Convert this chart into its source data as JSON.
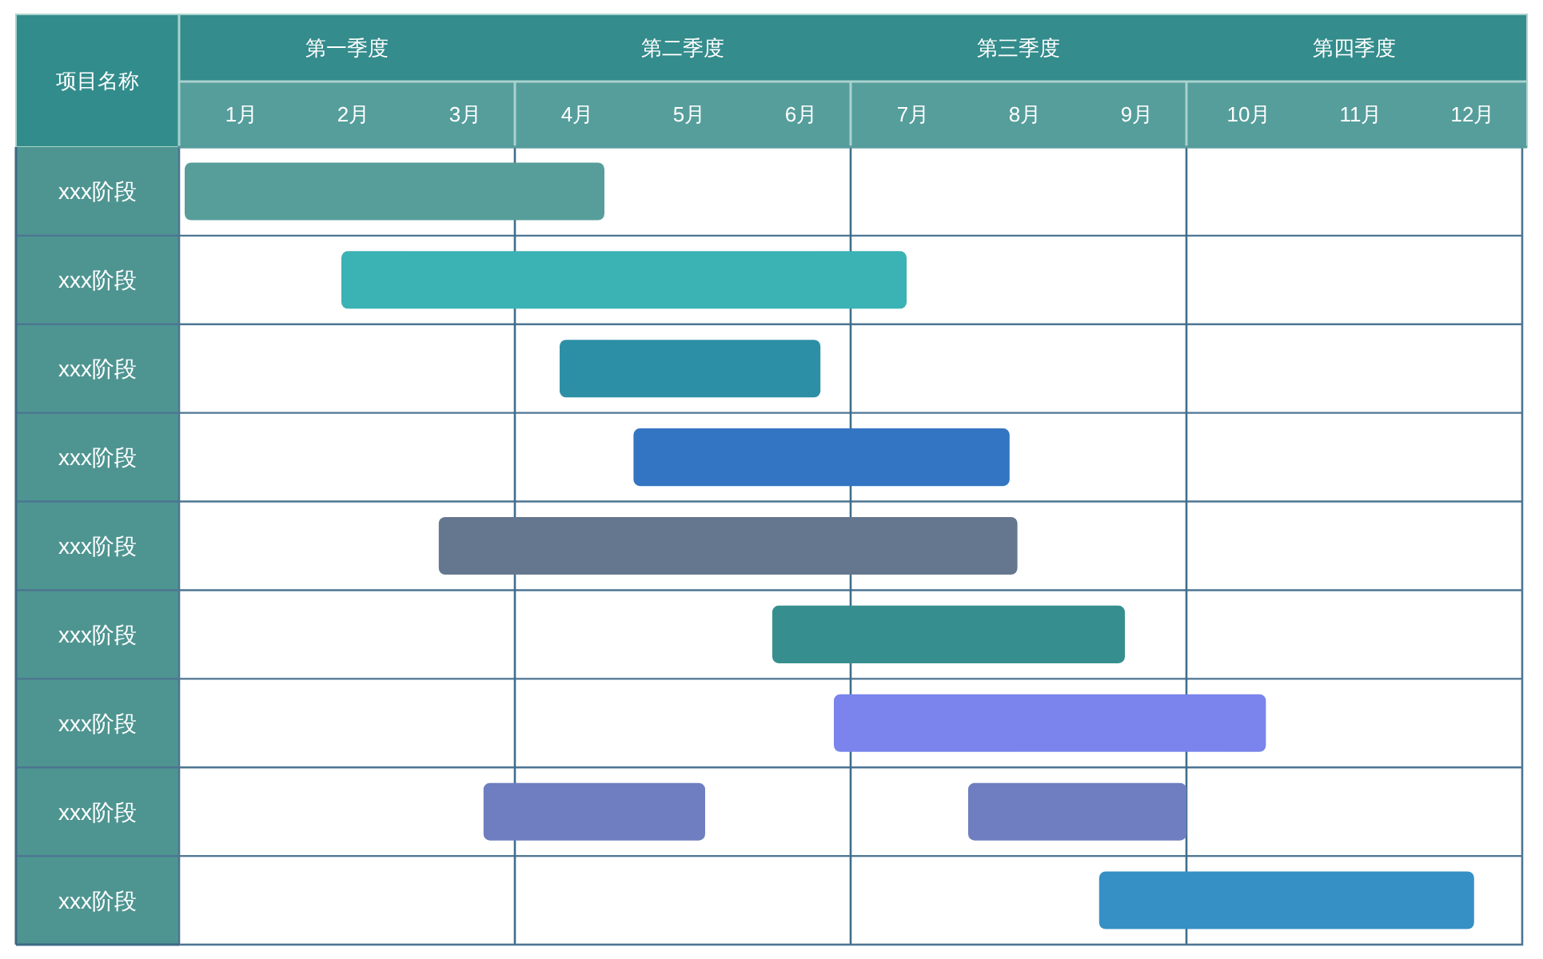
{
  "chart_data": {
    "type": "bar",
    "orientation": "horizontal",
    "ylabel": "项目名称",
    "categories": [
      "xxx阶段",
      "xxx阶段",
      "xxx阶段",
      "xxx阶段",
      "xxx阶段",
      "xxx阶段",
      "xxx阶段",
      "xxx阶段",
      "xxx阶段"
    ],
    "series": [
      {
        "values": [
          3.75,
          5.05,
          2.33,
          3.36,
          5.17,
          3.15,
          3.86,
          1.98,
          3.35
        ],
        "base": [
          0.05,
          1.45,
          3.4,
          4.06,
          2.32,
          5.3,
          5.85,
          2.72,
          8.22
        ],
        "colors": [
          "#579e9b",
          "#3bb2b3",
          "#2d8fa5",
          "#3375c2",
          "#64778f",
          "#368f8e",
          "#7a84ec",
          "#6e7ec0",
          "#3690c5"
        ]
      },
      {
        "values": [
          null,
          null,
          null,
          null,
          null,
          null,
          null,
          1.95,
          null
        ],
        "base": [
          null,
          null,
          null,
          null,
          null,
          null,
          null,
          7.05,
          null
        ],
        "color": "#6e7ec0"
      }
    ],
    "xlim": [
      0,
      12
    ],
    "xticks": [
      {
        "value": 0.5,
        "label": "1月"
      },
      {
        "value": 1.5,
        "label": "2月"
      },
      {
        "value": 2.5,
        "label": "3月"
      },
      {
        "value": 3.5,
        "label": "4月"
      },
      {
        "value": 4.5,
        "label": "5月"
      },
      {
        "value": 5.5,
        "label": "6月"
      },
      {
        "value": 6.5,
        "label": "7月"
      },
      {
        "value": 7.5,
        "label": "8月"
      },
      {
        "value": 8.5,
        "label": "9月"
      },
      {
        "value": 9.5,
        "label": "10月"
      },
      {
        "value": 10.5,
        "label": "11月"
      },
      {
        "value": 11.5,
        "label": "12月"
      }
    ],
    "annotations": [
      "第一季度",
      "第二季度",
      "第三季度",
      "第四季度"
    ],
    "grid": "y",
    "ref_lines": [
      {
        "axis": "x",
        "value": 3
      },
      {
        "axis": "x",
        "value": 6
      },
      {
        "axis": "x",
        "value": 9
      }
    ]
  }
}
